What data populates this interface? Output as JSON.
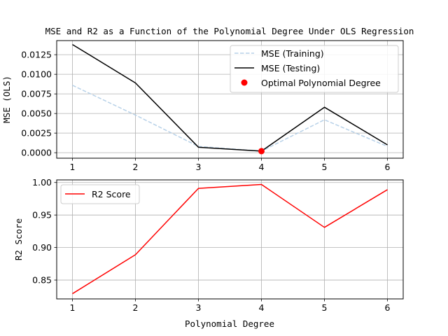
{
  "chart_data": [
    {
      "type": "line",
      "title": "MSE and R2 as a Function of the Polynomial Degree Under OLS Regression",
      "xlabel": "",
      "ylabel": "MSE (OLS)",
      "x": [
        1,
        2,
        3,
        4,
        5,
        6
      ],
      "xticks": [
        "1",
        "2",
        "3",
        "4",
        "5",
        "6"
      ],
      "xlim": [
        0.75,
        6.25
      ],
      "ylim": [
        -0.0007,
        0.0143
      ],
      "yticks": [
        0.0,
        0.0025,
        0.005,
        0.0075,
        0.01,
        0.0125
      ],
      "ytick_labels": [
        "0.0000",
        "0.0025",
        "0.0050",
        "0.0075",
        "0.0100",
        "0.0125"
      ],
      "grid": true,
      "legend": "top-right",
      "series": [
        {
          "name": "MSE (Training)",
          "values": [
            0.0086,
            0.0048,
            0.0008,
            0.0002,
            0.0042,
            0.0008
          ],
          "color": "#b7d1e8",
          "style": "dashed"
        },
        {
          "name": "MSE (Testing)",
          "values": [
            0.0138,
            0.0089,
            0.0007,
            0.0002,
            0.0058,
            0.001
          ],
          "color": "#000000",
          "style": "solid"
        },
        {
          "name": "Optimal Polynomial Degree",
          "points": [
            [
              4,
              0.0002
            ]
          ],
          "color": "#ff0000",
          "style": "marker"
        }
      ]
    },
    {
      "type": "line",
      "title": "",
      "xlabel": "Polynomial Degree",
      "ylabel": "R2 Score",
      "x": [
        1,
        2,
        3,
        4,
        5,
        6
      ],
      "xticks": [
        "1",
        "2",
        "3",
        "4",
        "5",
        "6"
      ],
      "xlim": [
        0.75,
        6.25
      ],
      "ylim": [
        0.821,
        1.004
      ],
      "yticks": [
        0.85,
        0.9,
        0.95,
        1.0
      ],
      "ytick_labels": [
        "0.85",
        "0.90",
        "0.95",
        "1.00"
      ],
      "grid": true,
      "legend": "top-left",
      "series": [
        {
          "name": "R2 Score",
          "values": [
            0.829,
            0.889,
            0.991,
            0.997,
            0.931,
            0.989
          ],
          "color": "#ff0000",
          "style": "solid"
        }
      ]
    }
  ]
}
